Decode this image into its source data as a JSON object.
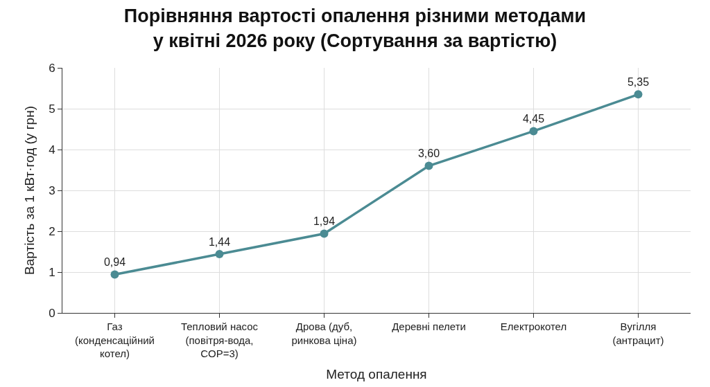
{
  "chart_data": {
    "type": "line",
    "title": "Порівняння вартості опалення різними методами\nу квітні 2026 року (Сортування за вартістю)",
    "xlabel": "Метод опалення",
    "ylabel": "Вартість за 1 кВт·год (у грн)",
    "categories": [
      "Газ\n(конденсаційний\nкотел)",
      "Тепловий насос\n(повітря-вода,\nCOP=3)",
      "Дрова (дуб,\nринкова ціна)",
      "Деревні пелети",
      "Електрокотел",
      "Вугілля\n(антрацит)"
    ],
    "series": [
      {
        "color": "#4b8b93",
        "values": [
          0.94,
          1.44,
          1.94,
          3.6,
          4.45,
          5.35
        ],
        "value_labels": [
          "0,94",
          "1,44",
          "1,94",
          "3,60",
          "4,45",
          "5,35"
        ]
      }
    ],
    "ylim": [
      0,
      6
    ],
    "yticks": [
      0,
      1,
      2,
      3,
      4,
      5,
      6
    ],
    "grid": true,
    "marker": "circle",
    "line_style": "solid"
  }
}
